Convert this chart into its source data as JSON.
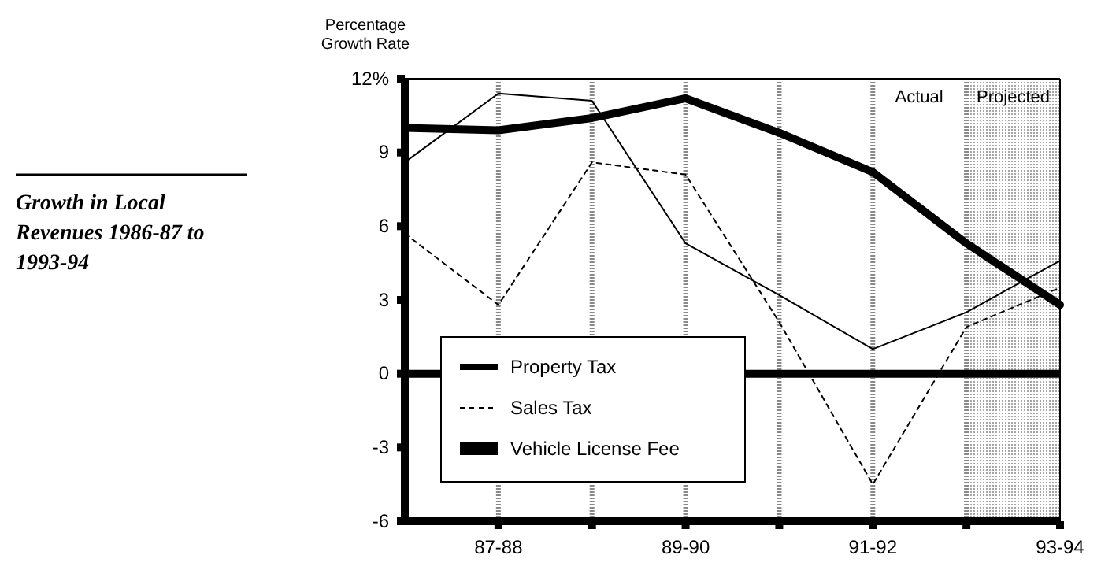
{
  "chart_data": {
    "type": "line",
    "title": "Growth in Local Revenues 1986-87 to 1993-94",
    "ylabel": "Percentage Growth Rate",
    "categories": [
      null,
      "87-88",
      null,
      "89-90",
      null,
      "91-92",
      null,
      "93-94"
    ],
    "ylim": [
      -6,
      12
    ],
    "yticks": [
      {
        "value": 12,
        "label": "12%"
      },
      9,
      6,
      3,
      0,
      -3,
      -6
    ],
    "grid": "x",
    "legend": "bottom left",
    "marker": "none",
    "series": [
      {
        "name": "Property Tax",
        "color": "#000000",
        "line_style": "solid",
        "values": [
          8.6,
          11.4,
          11.1,
          5.3,
          3.2,
          1.0,
          2.5,
          4.6
        ]
      },
      {
        "name": "Sales Tax",
        "color": "#000000",
        "line_style": "dashed",
        "values": [
          5.7,
          2.8,
          8.6,
          8.1,
          2.1,
          -4.5,
          1.9,
          3.5
        ]
      },
      {
        "name": "Vehicle License Fee",
        "color": "#000000",
        "line_style": "solid",
        "values": [
          10.0,
          9.9,
          10.4,
          11.2,
          9.8,
          8.2,
          5.3,
          2.8
        ]
      }
    ],
    "ref_lines": [
      {
        "axis": "y",
        "value": 0,
        "color": "#000000"
      }
    ],
    "annotations": [
      "Actual",
      "Projected"
    ]
  }
}
